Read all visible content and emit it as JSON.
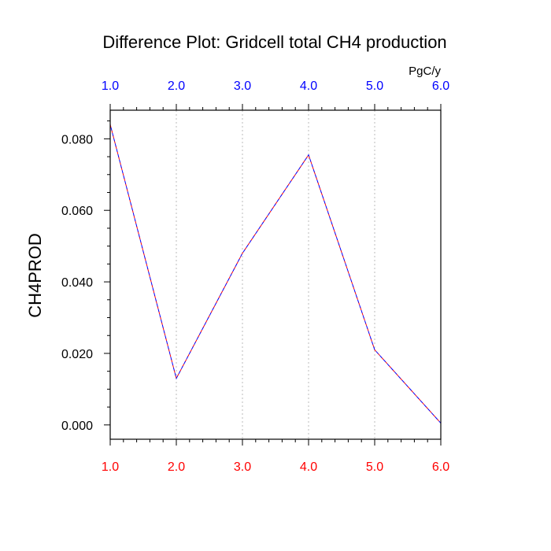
{
  "chart_data": {
    "type": "line",
    "title": "Difference Plot: Gridcell total CH4 production",
    "units": "PgC/y",
    "ylabel": "CH4PROD",
    "xlabel": "",
    "x": [
      1,
      2,
      3,
      4,
      5,
      6
    ],
    "x_ticks": [
      "1.0",
      "2.0",
      "3.0",
      "4.0",
      "5.0",
      "6.0"
    ],
    "xlim": [
      1,
      6
    ],
    "ylim": [
      -0.004,
      0.088
    ],
    "y_ticks": [
      "0.000",
      "0.020",
      "0.040",
      "0.060",
      "0.080"
    ],
    "y_tick_values": [
      0.0,
      0.02,
      0.04,
      0.06,
      0.08
    ],
    "series": [
      {
        "values": [
          0.084,
          0.013,
          0.048,
          0.0755,
          0.021,
          0.0005
        ]
      },
      {
        "values": [
          0.084,
          0.013,
          0.048,
          0.0755,
          0.021,
          0.0005
        ]
      }
    ],
    "colors": {
      "series_a": "#ff0000",
      "series_b": "#0000ff",
      "bottom_tick_labels": "#ff0000",
      "top_tick_labels": "#0000ff",
      "grid": "#bbbbbb"
    },
    "vertical_grid": true,
    "line_style": "dashed"
  }
}
